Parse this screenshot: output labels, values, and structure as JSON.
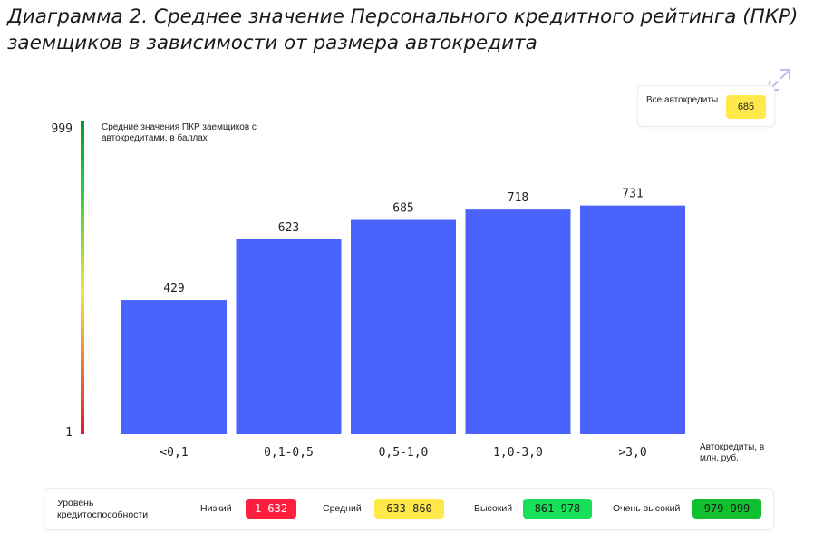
{
  "title": "Диаграмма 2. Среднее значение Персонального кредитного рейтинга (ПКР) заемщиков в зависимости от размера автокредита",
  "summary": {
    "label": "Все автокредиты",
    "value": "685",
    "color": "#ffe94a"
  },
  "chart_data": {
    "type": "bar",
    "categories": [
      "<0,1",
      "0,1-0,5",
      "0,5-1,0",
      "1,0-3,0",
      ">3,0"
    ],
    "values": [
      429,
      623,
      685,
      718,
      731
    ],
    "ylabel": "Средние значения ПКР заемщиков с автокредитами, в баллах",
    "xlabel": "Автокредиты, в млн. руб.",
    "ylim": [
      1,
      999
    ],
    "y_ticks": [
      "999",
      "1"
    ],
    "bar_color": "#4a63ff",
    "gradient_colors": [
      "#e8142c",
      "#f5e63a",
      "#1fcc3c",
      "#0b9a2a"
    ],
    "grid": false
  },
  "legend": {
    "title": "Уровень кредитоспособности",
    "items": [
      {
        "label": "Низкий",
        "range": "1–632",
        "color": "#ff1f3d",
        "text_color": "#ffffff"
      },
      {
        "label": "Средний",
        "range": "633–860",
        "color": "#ffe94a",
        "text_color": "#222222"
      },
      {
        "label": "Высокий",
        "range": "861–978",
        "color": "#19e05a",
        "text_color": "#1a1a1a"
      },
      {
        "label": "Очень высокий",
        "range": "979–999",
        "color": "#11c02f",
        "text_color": "#1a1a1a"
      }
    ]
  }
}
